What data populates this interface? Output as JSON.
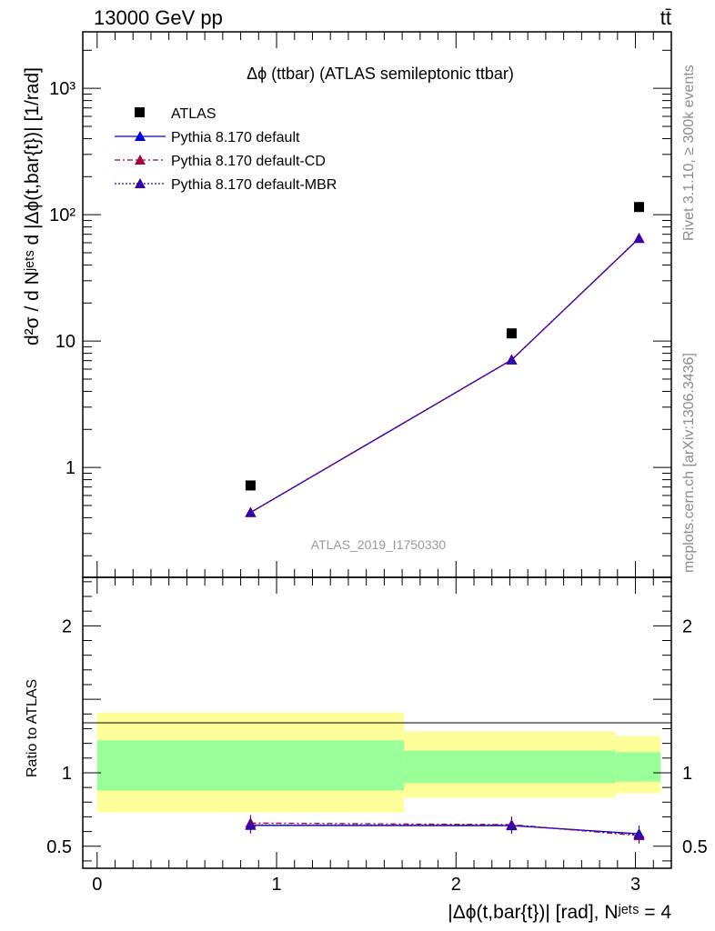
{
  "header": {
    "left": "13000 GeV pp",
    "right": "tt̄"
  },
  "side_labels": {
    "rivet": "Rivet 3.1.10, ≥ 300k events",
    "mcplots": "mcplots.cern.ch [arXiv:1306.3436]"
  },
  "chart_data": [
    {
      "type": "scatter",
      "panel": "main",
      "title": "Δϕ (ttbar) (ATLAS semileptonic ttbar)",
      "watermark": "ATLAS_2019_I1750330",
      "ylabel": "d²σ / d Nʲᵉᵗˢ d |Δϕ(t,bar{t})| [1/rad]",
      "yscale": "log",
      "ylim": [
        0.135,
        2800
      ],
      "xlim": [
        -0.08,
        3.2
      ],
      "yticks": [
        {
          "value": 1,
          "label": "1"
        },
        {
          "value": 10,
          "label": "10"
        },
        {
          "value": 100,
          "label": "10²"
        },
        {
          "value": 1000,
          "label": "10³"
        }
      ],
      "legend_position": "top-left",
      "x": [
        0.855,
        2.31,
        3.02
      ],
      "series": [
        {
          "name": "ATLAS",
          "values": [
            0.72,
            11.5,
            115
          ],
          "color": "#000000",
          "marker": "square",
          "line": "none"
        },
        {
          "name": "Pythia 8.170 default",
          "values": [
            0.44,
            7.1,
            65
          ],
          "color": "#0000e0",
          "marker": "triangle",
          "line": "solid"
        },
        {
          "name": "Pythia 8.170 default-CD",
          "values": [
            0.44,
            7.1,
            65
          ],
          "color": "#aa0044",
          "marker": "triangle",
          "line": "dashdot"
        },
        {
          "name": "Pythia 8.170 default-MBR",
          "values": [
            0.44,
            7.1,
            65
          ],
          "color": "#3300aa",
          "marker": "triangle",
          "line": "dotted"
        }
      ]
    },
    {
      "type": "line",
      "panel": "ratio",
      "ylabel": "Ratio to ATLAS",
      "xlabel": "|Δϕ(t,bar{t})| [rad], Nʲᵉᵗˢ = 4",
      "xlim": [
        -0.08,
        3.2
      ],
      "ylim": [
        0.35,
        2.33
      ],
      "xticks": [
        {
          "value": 0,
          "label": "0"
        },
        {
          "value": 1,
          "label": "1"
        },
        {
          "value": 2,
          "label": "2"
        },
        {
          "value": 3,
          "label": "3"
        }
      ],
      "yticks": [
        {
          "value": 0.5,
          "label": "0.5"
        },
        {
          "value": 1,
          "label": "1"
        },
        {
          "value": 2,
          "label": "2"
        }
      ],
      "bands": [
        {
          "x0": 0.0,
          "x1": 1.71,
          "outer": [
            0.73,
            1.41
          ],
          "inner": [
            0.88,
            1.22
          ]
        },
        {
          "x0": 1.71,
          "x1": 2.89,
          "outer": [
            0.83,
            1.28
          ],
          "inner": [
            0.93,
            1.15
          ]
        },
        {
          "x0": 2.89,
          "x1": 3.14,
          "outer": [
            0.86,
            1.25
          ],
          "inner": [
            0.94,
            1.14
          ]
        }
      ],
      "band_colors": {
        "outer": "#ffff99",
        "inner": "#99ff99"
      },
      "x": [
        0.855,
        2.31,
        3.02
      ],
      "series": [
        {
          "name": "Pythia 8.170 default",
          "values": [
            0.642,
            0.64,
            0.585
          ],
          "color": "#0000e0",
          "line": "solid"
        },
        {
          "name": "Pythia 8.170 default-CD",
          "values": [
            0.658,
            0.647,
            0.572
          ],
          "color": "#aa0044",
          "line": "dashdot"
        },
        {
          "name": "Pythia 8.170 default-MBR",
          "values": [
            0.645,
            0.643,
            0.58
          ],
          "color": "#3300aa",
          "line": "dotted"
        }
      ]
    }
  ]
}
